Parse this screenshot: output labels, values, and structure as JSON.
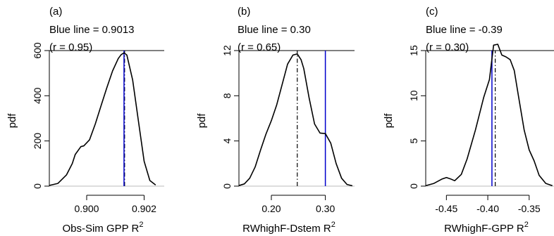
{
  "colors": {
    "density": "#000000",
    "blue_line": "#0000cc",
    "baseline": "#bbbbbb",
    "axis": "#000000"
  },
  "chart_data": [
    {
      "type": "line",
      "panel_label": "(a)",
      "title_line1": "Blue line = 0.9013",
      "title_line2": "(r = 0.95)",
      "xlabel": "Obs-Sim GPP R",
      "xlabel_sup": "2",
      "ylabel": "pdf",
      "xlim": [
        0.8987,
        0.9027
      ],
      "ylim": [
        0,
        600
      ],
      "xticks": [
        0.9,
        0.902
      ],
      "xtick_labels": [
        "0.900",
        "0.902"
      ],
      "yticks": [
        0,
        200,
        400,
        600
      ],
      "ytick_labels": [
        "0",
        "200",
        "400",
        "600"
      ],
      "blue_line_x": 0.9013,
      "dashdot_line_x": 0.90132,
      "series": [
        {
          "x": [
            0.8987,
            0.899,
            0.8993,
            0.8995,
            0.8996,
            0.8998,
            0.8999,
            0.9001,
            0.9003,
            0.9005,
            0.9007,
            0.9009,
            0.9011,
            0.9012,
            0.9013,
            0.9014,
            0.9016,
            0.9018,
            0.902,
            0.9022,
            0.9024
          ],
          "y": [
            3,
            12,
            50,
            100,
            140,
            175,
            178,
            205,
            275,
            355,
            435,
            510,
            565,
            582,
            590,
            580,
            470,
            290,
            110,
            25,
            5
          ]
        }
      ]
    },
    {
      "type": "line",
      "panel_label": "(b)",
      "title_line1": "Blue line = 0.30",
      "title_line2": "(r = 0.65)",
      "xlabel": "RWhighF-Dstem R",
      "xlabel_sup": "2",
      "ylabel": "pdf",
      "xlim": [
        0.14,
        0.354
      ],
      "ylim": [
        0,
        12
      ],
      "xticks": [
        0.2,
        0.3
      ],
      "xtick_labels": [
        "0.20",
        "0.30"
      ],
      "yticks": [
        0,
        4,
        8,
        12
      ],
      "ytick_labels": [
        "0",
        "4",
        "8",
        "12"
      ],
      "blue_line_x": 0.3,
      "dashdot_line_x": 0.248,
      "series": [
        {
          "x": [
            0.14,
            0.15,
            0.16,
            0.17,
            0.18,
            0.19,
            0.2,
            0.21,
            0.22,
            0.23,
            0.24,
            0.248,
            0.255,
            0.26,
            0.27,
            0.28,
            0.29,
            0.3,
            0.31,
            0.32,
            0.33,
            0.34,
            0.35
          ],
          "y": [
            0.05,
            0.2,
            0.7,
            1.7,
            3.2,
            4.6,
            5.8,
            7.2,
            9.0,
            10.8,
            11.6,
            11.7,
            11.2,
            10.4,
            7.8,
            5.5,
            4.7,
            4.65,
            3.8,
            2.0,
            0.7,
            0.15,
            0.03
          ]
        }
      ]
    },
    {
      "type": "line",
      "panel_label": "(c)",
      "title_line1": "Blue line = -0.39",
      "title_line2": "(r = 0.30)",
      "xlabel": "RWhighF-GPP R",
      "xlabel_sup": "2",
      "ylabel": "pdf",
      "xlim": [
        -0.475,
        -0.32
      ],
      "ylim": [
        0,
        15
      ],
      "xticks": [
        -0.45,
        -0.4,
        -0.35
      ],
      "xtick_labels": [
        "-0.45",
        "-0.40",
        "-0.35"
      ],
      "yticks": [
        0,
        5,
        10,
        15
      ],
      "ytick_labels": [
        "0",
        "5",
        "10",
        "15"
      ],
      "blue_line_x": -0.395,
      "dashdot_line_x": -0.391,
      "series": [
        {
          "x": [
            -0.475,
            -0.465,
            -0.455,
            -0.45,
            -0.445,
            -0.44,
            -0.432,
            -0.425,
            -0.415,
            -0.405,
            -0.398,
            -0.393,
            -0.388,
            -0.383,
            -0.378,
            -0.373,
            -0.368,
            -0.363,
            -0.356,
            -0.35,
            -0.344,
            -0.338,
            -0.33,
            -0.322
          ],
          "y": [
            0.05,
            0.3,
            0.8,
            0.95,
            0.8,
            0.6,
            1.3,
            3.0,
            6.2,
            9.8,
            11.8,
            15.6,
            15.7,
            14.5,
            14.3,
            14.0,
            12.8,
            10.0,
            6.2,
            4.0,
            2.8,
            1.2,
            0.3,
            0.05
          ]
        }
      ]
    }
  ]
}
